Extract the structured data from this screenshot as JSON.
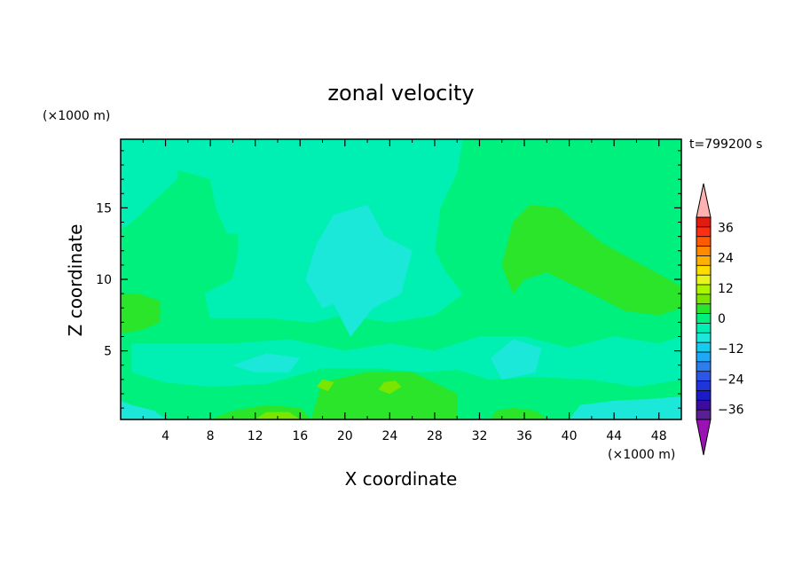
{
  "chart_data": {
    "type": "heatmap",
    "title": "zonal velocity",
    "xlabel": "X coordinate",
    "ylabel": "Z coordinate",
    "x_unit": "(×1000 m)",
    "y_unit": "(×1000 m)",
    "time_label": "t=799200 s",
    "xlim": [
      0,
      50
    ],
    "ylim": [
      0.2,
      19.8
    ],
    "x_ticks": [
      4,
      8,
      12,
      16,
      20,
      24,
      28,
      32,
      36,
      40,
      44,
      48
    ],
    "y_ticks": [
      5,
      10,
      15
    ],
    "colorbar": {
      "levels": [
        -40,
        -36,
        -32,
        -28,
        -24,
        -20,
        -16,
        -12,
        -8,
        -4,
        0,
        4,
        8,
        12,
        16,
        20,
        24,
        28,
        32,
        36,
        40
      ],
      "colors": [
        "#5a1e96",
        "#3c0ba0",
        "#1a1acb",
        "#2035d9",
        "#2d55e8",
        "#2e7df0",
        "#1fa8f5",
        "#13ccf0",
        "#1be8d8",
        "#00f0b4",
        "#00f07e",
        "#2be52b",
        "#7ae600",
        "#aaf500",
        "#e6f51a",
        "#ffdc00",
        "#ffb000",
        "#ff8a00",
        "#ff5a00",
        "#ff2d12",
        "#e31a0e"
      ],
      "under_color": "#9b12b4",
      "over_color": "#ffb0b0",
      "tick_labels": [
        "36",
        "24",
        "12",
        "0",
        "-12",
        "-24",
        "-36"
      ]
    },
    "regions": [
      {
        "name": "background",
        "value": 2,
        "points": [
          [
            0,
            0.2
          ],
          [
            50,
            0.2
          ],
          [
            50,
            19.8
          ],
          [
            0,
            19.8
          ]
        ]
      },
      {
        "name": "upper-left-weak",
        "value": -2,
        "points": [
          [
            0,
            19.8
          ],
          [
            5.5,
            19.8
          ],
          [
            5,
            17
          ],
          [
            3,
            15.5
          ],
          [
            1,
            14
          ],
          [
            0,
            13.5
          ]
        ]
      },
      {
        "name": "upper-middle-weak",
        "value": -2,
        "points": [
          [
            5.5,
            19.8
          ],
          [
            30.5,
            19.8
          ],
          [
            30,
            17.5
          ],
          [
            28.5,
            15
          ],
          [
            28,
            12
          ],
          [
            29,
            10.5
          ],
          [
            30.5,
            9
          ],
          [
            28,
            7.5
          ],
          [
            24,
            7
          ],
          [
            20,
            7.5
          ],
          [
            17,
            7
          ],
          [
            13,
            7.3
          ],
          [
            8,
            7.3
          ],
          [
            7.5,
            9
          ],
          [
            10,
            10
          ],
          [
            10.5,
            12
          ],
          [
            10.5,
            14
          ],
          [
            11.5,
            15
          ],
          [
            14.5,
            15.8
          ],
          [
            15,
            14.5
          ],
          [
            13,
            13.3
          ],
          [
            9.5,
            13.2
          ],
          [
            8.5,
            15
          ],
          [
            8,
            17
          ],
          [
            4.5,
            17.8
          ]
        ]
      },
      {
        "name": "lower-middle-weak",
        "value": -2,
        "points": [
          [
            1,
            5.5
          ],
          [
            5,
            5.5
          ],
          [
            10,
            5.5
          ],
          [
            15,
            5.8
          ],
          [
            20,
            5
          ],
          [
            24,
            5.5
          ],
          [
            28,
            5
          ],
          [
            32,
            6
          ],
          [
            36,
            6
          ],
          [
            40,
            5.2
          ],
          [
            44,
            6
          ],
          [
            48,
            5.5
          ],
          [
            50,
            6
          ],
          [
            50,
            3
          ],
          [
            46,
            2.5
          ],
          [
            42,
            3
          ],
          [
            37,
            3.2
          ],
          [
            33,
            3
          ],
          [
            30,
            3.7
          ],
          [
            27,
            3.5
          ],
          [
            23,
            3.8
          ],
          [
            18,
            3.8
          ],
          [
            13,
            2.7
          ],
          [
            8,
            2.5
          ],
          [
            4,
            2.8
          ],
          [
            1,
            3.5
          ]
        ]
      },
      {
        "name": "central-negative",
        "value": -6,
        "points": [
          [
            18,
            8
          ],
          [
            16.5,
            10
          ],
          [
            17.5,
            12.5
          ],
          [
            19,
            14.5
          ],
          [
            22,
            15.2
          ],
          [
            23.5,
            13
          ],
          [
            26,
            12
          ],
          [
            25,
            9
          ],
          [
            22.5,
            8
          ],
          [
            20.5,
            6
          ],
          [
            19,
            8.3
          ]
        ]
      },
      {
        "name": "lower-left-negative",
        "value": -6,
        "points": [
          [
            10,
            4
          ],
          [
            13,
            4.8
          ],
          [
            16,
            4.5
          ],
          [
            15,
            3.5
          ],
          [
            12,
            3.5
          ]
        ]
      },
      {
        "name": "lower-right-negative",
        "value": -6,
        "points": [
          [
            33,
            4.5
          ],
          [
            35,
            5.8
          ],
          [
            37.5,
            5.2
          ],
          [
            37,
            3.5
          ],
          [
            34,
            3
          ]
        ]
      },
      {
        "name": "bottom-left-negative",
        "value": -6,
        "points": [
          [
            0,
            0.2
          ],
          [
            4,
            0.2
          ],
          [
            3,
            0.8
          ],
          [
            1,
            1.2
          ],
          [
            0,
            1.5
          ]
        ]
      },
      {
        "name": "bottom-right-negative",
        "value": -6,
        "points": [
          [
            40,
            0.2
          ],
          [
            50,
            0.2
          ],
          [
            50,
            1.8
          ],
          [
            47,
            1.6
          ],
          [
            44,
            1.5
          ],
          [
            41,
            1.2
          ]
        ]
      },
      {
        "name": "right-positive",
        "value": 6,
        "points": [
          [
            35,
            9
          ],
          [
            34,
            11
          ],
          [
            35,
            14
          ],
          [
            36.5,
            15.2
          ],
          [
            39,
            15
          ],
          [
            43,
            12.5
          ],
          [
            46.5,
            11
          ],
          [
            50,
            9.5
          ],
          [
            50,
            8
          ],
          [
            48,
            7.5
          ],
          [
            45,
            7.8
          ],
          [
            42,
            9
          ],
          [
            38,
            10.5
          ],
          [
            36,
            10
          ]
        ]
      },
      {
        "name": "left-positive",
        "value": 6,
        "points": [
          [
            0,
            6.2
          ],
          [
            2,
            6.5
          ],
          [
            3.5,
            7
          ],
          [
            3.5,
            8.5
          ],
          [
            1.5,
            9
          ],
          [
            0,
            9
          ]
        ]
      },
      {
        "name": "bottom-center-positive",
        "value": 6,
        "points": [
          [
            17,
            0.2
          ],
          [
            30,
            0.2
          ],
          [
            30,
            2
          ],
          [
            26,
            3.5
          ],
          [
            22,
            3.5
          ],
          [
            18,
            2.8
          ]
        ]
      },
      {
        "name": "bottom-left-positive",
        "value": 6,
        "points": [
          [
            8,
            0.2
          ],
          [
            17,
            0.2
          ],
          [
            16,
            1
          ],
          [
            13,
            1.2
          ],
          [
            10,
            0.8
          ]
        ]
      },
      {
        "name": "bottom-right-positive",
        "value": 6,
        "points": [
          [
            33,
            0.2
          ],
          [
            38,
            0.2
          ],
          [
            37,
            0.8
          ],
          [
            35,
            1
          ],
          [
            33.5,
            0.8
          ]
        ]
      },
      {
        "name": "bottom-yellow",
        "value": 10,
        "points": [
          [
            12,
            0.2
          ],
          [
            16,
            0.2
          ],
          [
            15,
            0.7
          ],
          [
            13,
            0.7
          ]
        ]
      },
      {
        "name": "mid-yellow",
        "value": 10,
        "points": [
          [
            23,
            2.3
          ],
          [
            23.5,
            2.8
          ],
          [
            24.5,
            2.9
          ],
          [
            25,
            2.5
          ],
          [
            24,
            2
          ]
        ]
      },
      {
        "name": "mid-yellow-2",
        "value": 10,
        "points": [
          [
            17.5,
            2.5
          ],
          [
            18,
            3
          ],
          [
            19,
            2.8
          ],
          [
            18.5,
            2.2
          ]
        ]
      }
    ]
  }
}
